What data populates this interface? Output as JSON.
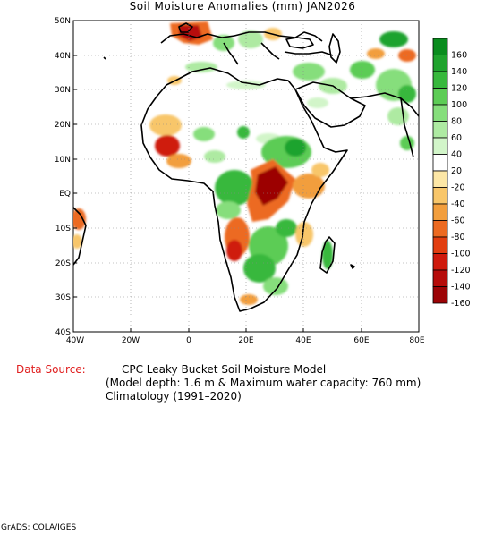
{
  "title": "Soil Moisture Anomalies (mm) JAN2026",
  "axes": {
    "lat_labels": [
      "50N",
      "40N",
      "30N",
      "20N",
      "10N",
      "EQ",
      "10S",
      "20S",
      "30S",
      "40S"
    ],
    "lon_labels": [
      "40W",
      "20W",
      "0",
      "20E",
      "40E",
      "60E",
      "80E"
    ]
  },
  "legend": {
    "labels": [
      "160",
      "140",
      "120",
      "100",
      "80",
      "60",
      "40",
      "20",
      "-20",
      "-40",
      "-60",
      "-80",
      "-100",
      "-120",
      "-140",
      "-160"
    ],
    "colors": [
      "#0a8c1e",
      "#1fa32d",
      "#37b83c",
      "#5ccc55",
      "#86de7c",
      "#aeeaa2",
      "#d2f5c9",
      "#ffffff",
      "#fde7a6",
      "#f8c66a",
      "#f29e3d",
      "#ec6a21",
      "#e23e10",
      "#cf1a0c",
      "#b60c0a",
      "#9c0406"
    ]
  },
  "footer": {
    "source_label": "Data Source:",
    "source_line1": "CPC Leaky Bucket Soil Moisture Model",
    "source_line2": "(Model depth: 1.6 m & Maximum water capacity: 760 mm)",
    "source_line3": "Climatology (1991–2020)"
  },
  "credit": "GrADS: COLA/IGES"
}
